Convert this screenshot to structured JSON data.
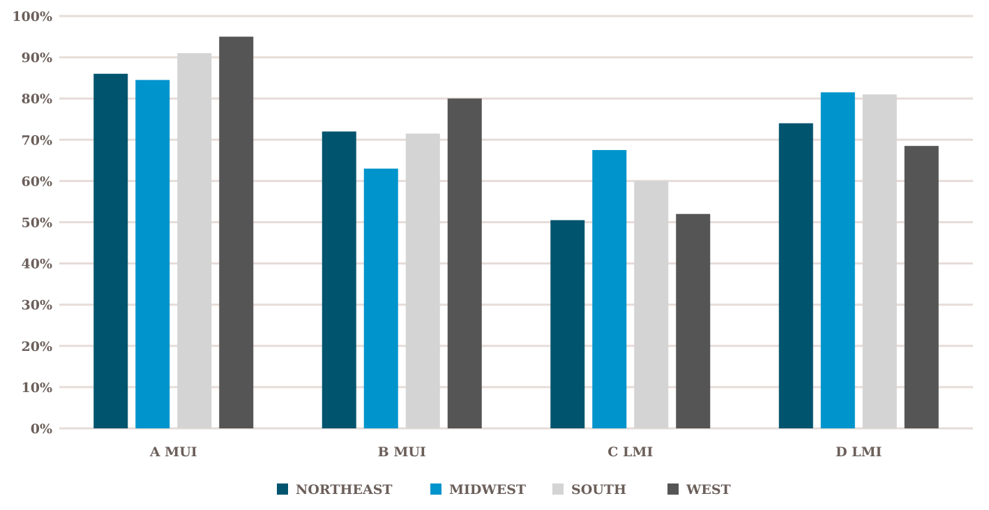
{
  "chart_data": {
    "type": "bar",
    "categories": [
      "A MUI",
      "B MUI",
      "C LMI",
      "D LMI"
    ],
    "series": [
      {
        "name": "NORTHEAST",
        "color": "#01546e",
        "values": [
          86,
          72,
          50.5,
          74
        ]
      },
      {
        "name": "MIDWEST",
        "color": "#0094cc",
        "values": [
          84.5,
          63,
          67.5,
          81.5
        ]
      },
      {
        "name": "SOUTH",
        "color": "#d4d4d4",
        "values": [
          91,
          71.5,
          60,
          81
        ]
      },
      {
        "name": "WEST",
        "color": "#555555",
        "values": [
          95,
          80,
          52,
          68.5
        ]
      }
    ],
    "ylim": [
      0,
      100
    ],
    "yticks": [
      0,
      10,
      20,
      30,
      40,
      50,
      60,
      70,
      80,
      90,
      100
    ],
    "ytick_labels": [
      "0%",
      "10%",
      "20%",
      "30%",
      "40%",
      "50%",
      "60%",
      "70%",
      "80%",
      "90%",
      "100%"
    ],
    "grid": true,
    "legend_position": "bottom",
    "title": "",
    "xlabel": "",
    "ylabel": ""
  }
}
